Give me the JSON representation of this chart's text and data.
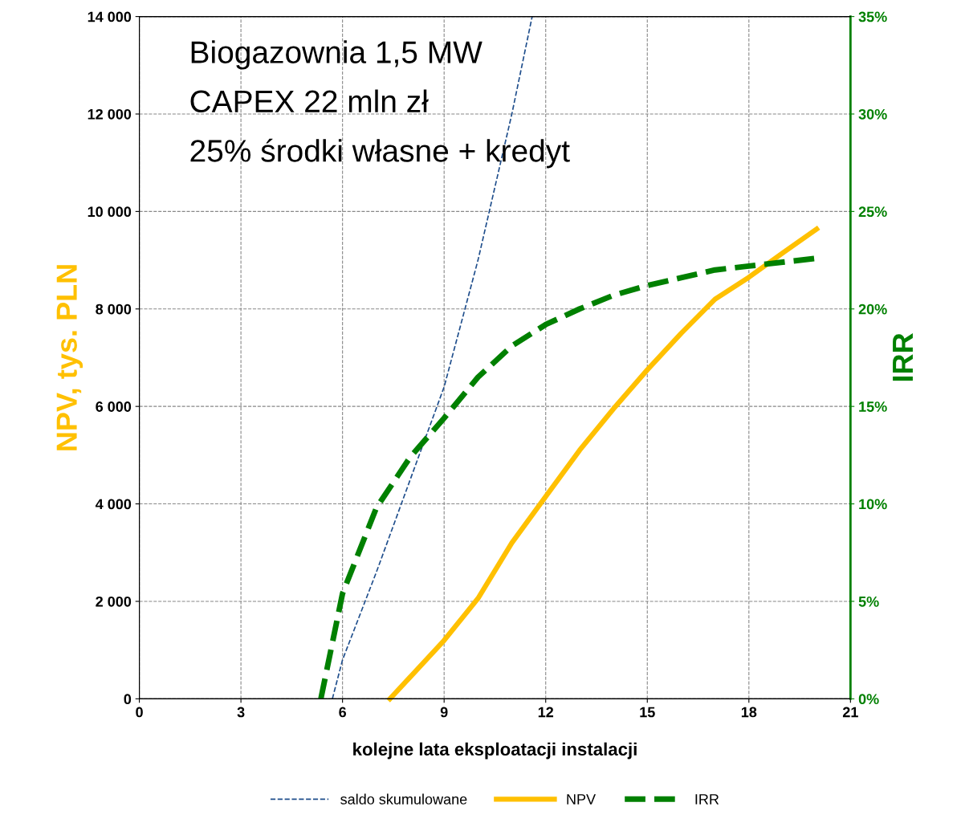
{
  "chart_data": {
    "type": "line",
    "xlabel": "kolejne lata eksploatacji instalacji",
    "ylabel": "NPV, tys. PLN",
    "y2label": "IRR",
    "xlim": [
      0,
      21
    ],
    "xticks": [
      0,
      3,
      6,
      9,
      12,
      15,
      18,
      21
    ],
    "ylim": [
      0,
      14000
    ],
    "yticks": [
      0,
      {
        "value": 2000,
        "label": "2 000"
      },
      {
        "value": 4000,
        "label": "4 000"
      },
      {
        "value": 6000,
        "label": "6 000"
      },
      {
        "value": 8000,
        "label": "8 000"
      },
      {
        "value": 10000,
        "label": "10 000"
      },
      {
        "value": 12000,
        "label": "12 000"
      },
      {
        "value": 14000,
        "label": "14 000"
      }
    ],
    "y2lim": [
      0,
      35
    ],
    "y2ticks": [
      {
        "value": 0,
        "label": "0%"
      },
      {
        "value": 5,
        "label": "5%"
      },
      {
        "value": 10,
        "label": "10%"
      },
      {
        "value": 15,
        "label": "15%"
      },
      {
        "value": 20,
        "label": "20%"
      },
      {
        "value": 25,
        "label": "25%"
      },
      {
        "value": 30,
        "label": "30%"
      },
      {
        "value": 35,
        "label": "35%"
      }
    ],
    "grid": true,
    "legend": "bottom",
    "annotations": [
      "Biogazownia 1,5 MW",
      "CAPEX 22 mln zł",
      "25% środki własne + kredyt"
    ],
    "series": [
      {
        "name": "saldo skumulowane",
        "color": "#1f4e8c",
        "line_style": "dashed",
        "x": [
          5.7,
          6,
          7,
          8,
          9,
          10,
          11,
          11.6
        ],
        "values": [
          0,
          800,
          2600,
          4500,
          6400,
          9000,
          12000,
          14000
        ]
      },
      {
        "name": "NPV",
        "color": "#ffc000",
        "line_style": "solid",
        "x": [
          7.4,
          9,
          10,
          11,
          12,
          13,
          14,
          15,
          16,
          17,
          18,
          19,
          20
        ],
        "values": [
          0,
          1200,
          2060,
          3200,
          4150,
          5100,
          5950,
          6750,
          7500,
          8200,
          8650,
          9150,
          9640
        ]
      },
      {
        "name": "IRR",
        "color": "#008000",
        "line_style": "dashed",
        "axis": "y2",
        "x": [
          5.36,
          6,
          7,
          8,
          9,
          10,
          11,
          12,
          13,
          14,
          15,
          16,
          17,
          18,
          19,
          20
        ],
        "values": [
          0,
          5.4,
          9.8,
          12.4,
          14.4,
          16.5,
          18.1,
          19.2,
          20,
          20.7,
          21.2,
          21.6,
          22,
          22.2,
          22.4,
          22.6
        ]
      }
    ]
  }
}
